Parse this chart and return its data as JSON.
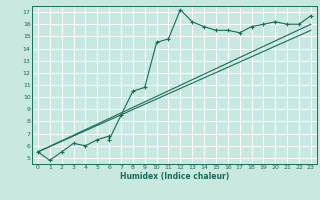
{
  "xlabel": "Humidex (Indice chaleur)",
  "bg_color": "#c8e8e0",
  "grid_color": "#ffffff",
  "line_color": "#1a6b5a",
  "xlim": [
    -0.5,
    23.5
  ],
  "ylim": [
    4.5,
    17.5
  ],
  "xticks": [
    0,
    1,
    2,
    3,
    4,
    5,
    6,
    7,
    8,
    9,
    10,
    11,
    12,
    13,
    14,
    15,
    16,
    17,
    18,
    19,
    20,
    21,
    22,
    23
  ],
  "yticks": [
    5,
    6,
    7,
    8,
    9,
    10,
    11,
    12,
    13,
    14,
    15,
    16,
    17
  ],
  "series": [
    [
      0,
      5.5
    ],
    [
      1,
      4.8
    ],
    [
      2,
      5.5
    ],
    [
      3,
      6.2
    ],
    [
      4,
      6.0
    ],
    [
      5,
      6.5
    ],
    [
      6,
      6.8
    ],
    [
      6,
      6.5
    ],
    [
      7,
      8.5
    ],
    [
      8,
      10.5
    ],
    [
      9,
      10.8
    ],
    [
      10,
      14.5
    ],
    [
      11,
      14.8
    ],
    [
      12,
      17.2
    ],
    [
      13,
      16.2
    ],
    [
      14,
      15.8
    ],
    [
      15,
      15.5
    ],
    [
      16,
      15.5
    ],
    [
      17,
      15.3
    ],
    [
      18,
      15.8
    ],
    [
      19,
      16.0
    ],
    [
      20,
      16.2
    ],
    [
      21,
      16.0
    ],
    [
      22,
      16.0
    ],
    [
      23,
      16.7
    ]
  ],
  "line2": [
    [
      0,
      5.5
    ],
    [
      23,
      16.0
    ]
  ],
  "line3": [
    [
      0,
      5.5
    ],
    [
      23,
      15.5
    ]
  ]
}
